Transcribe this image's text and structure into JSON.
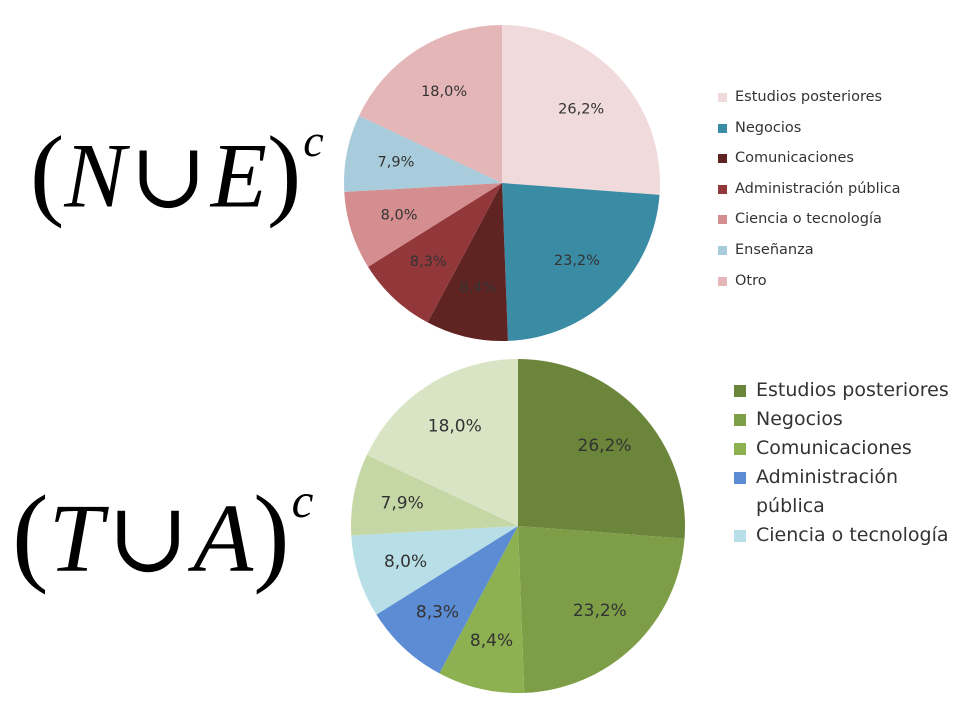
{
  "formulas": {
    "top": {
      "open": "(",
      "left": "N",
      "op": "∪",
      "right": "E",
      "close": ")",
      "sup": "c"
    },
    "bottom": {
      "open": "(",
      "left": "T",
      "op": "∪",
      "right": "A",
      "close": ")",
      "sup": "c"
    }
  },
  "chart_data": [
    {
      "type": "pie",
      "title": "",
      "categories": [
        "Estudios posteriores",
        "Negocios",
        "Comunicaciones",
        "Administración pública",
        "Ciencia o tecnología",
        "Enseñanza",
        "Otro"
      ],
      "values": [
        26.2,
        23.2,
        8.4,
        8.3,
        8.0,
        7.9,
        18.0
      ],
      "labels": [
        "26,2%",
        "23,2%",
        "8,4%",
        "8,3%",
        "8,0%",
        "7,9%",
        "18,0%"
      ],
      "colors": [
        "#f0dadb",
        "#3a8ba4",
        "#5f2322",
        "#93383a",
        "#d48e8f",
        "#a9ccdc",
        "#e5b6b7"
      ],
      "legend": [
        "Estudios posteriores",
        "Negocios",
        "Comunicaciones",
        "Administración pública",
        "Ciencia o tecnología",
        "Enseñanza",
        "Otro"
      ],
      "legend_position": "right"
    },
    {
      "type": "pie",
      "title": "",
      "categories": [
        "Estudios posteriores",
        "Negocios",
        "Comunicaciones",
        "Administración pública",
        "Ciencia o tecnología",
        "",
        ""
      ],
      "values": [
        26.2,
        23.2,
        8.4,
        8.3,
        8.0,
        7.9,
        18.0
      ],
      "labels": [
        "26,2%",
        "23,2%",
        "8,4%",
        "8,3%",
        "8,0%",
        "7,9%",
        "18,0%"
      ],
      "colors": [
        "#6b853b",
        "#7d9d47",
        "#8db050",
        "#5c8cd4",
        "#b8dfe7",
        "#c6d7a6",
        "#d9e4c5"
      ],
      "legend": [
        "Estudios posteriores",
        "Negocios",
        "Comunicaciones",
        "Administración pública",
        "Ciencia o tecnología"
      ],
      "legend_position": "right"
    }
  ]
}
